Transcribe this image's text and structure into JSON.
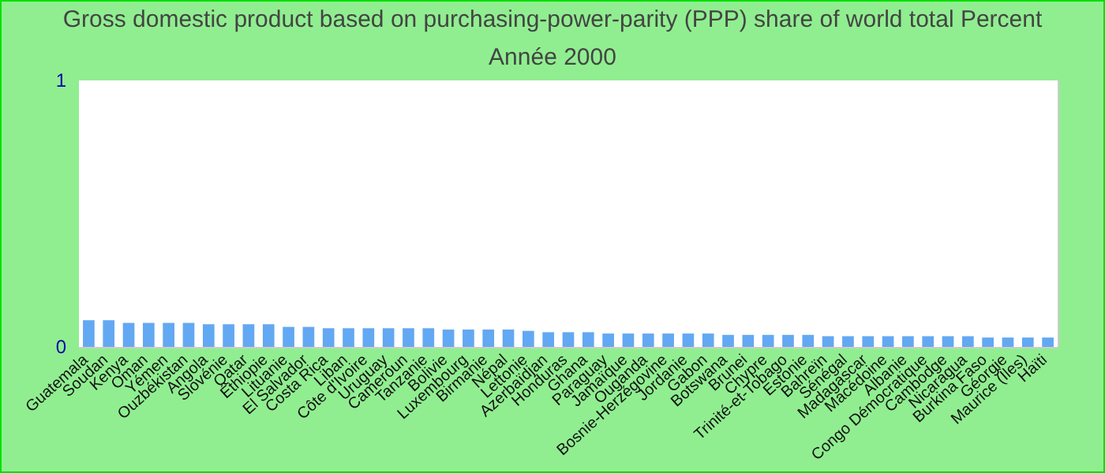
{
  "chart_data": {
    "type": "bar",
    "title": "Gross domestic product based on purchasing-power-parity (PPP) share of world total  Percent",
    "subtitle": "Année 2000",
    "categories": [
      "Guatemala",
      "Soudan",
      "Kenya",
      "Oman",
      "Yémen",
      "Ouzbékistan",
      "Angola",
      "Slovénie",
      "Qatar",
      "Éthiopie",
      "Lituanie",
      "El Salvador",
      "Costa Rica",
      "Liban",
      "Côte d'Ivoire",
      "Uruguay",
      "Cameroun",
      "Tanzanie",
      "Bolivie",
      "Luxembourg",
      "Birmanie",
      "Népal",
      "Lettonie",
      "Azerbaïdjan",
      "Honduras",
      "Ghana",
      "Paraguay",
      "Jamaïque",
      "Ouganda",
      "Bosnie-Herzégovine",
      "Jordanie",
      "Gabon",
      "Botswana",
      "Brunei",
      "Chypre",
      "Trinité-et-Tobago",
      "Estonie",
      "Bahreïn",
      "Sénégal",
      "Madagascar",
      "Macédoine",
      "Albanie",
      "Congo Démocratique",
      "Cambodge",
      "Nicaragua",
      "Burkina Faso",
      "Géorgie",
      "Maurice (Îles)",
      "Haïti"
    ],
    "values": [
      0.1,
      0.1,
      0.09,
      0.09,
      0.09,
      0.09,
      0.085,
      0.085,
      0.085,
      0.085,
      0.075,
      0.075,
      0.07,
      0.07,
      0.07,
      0.07,
      0.07,
      0.07,
      0.065,
      0.065,
      0.065,
      0.065,
      0.06,
      0.055,
      0.055,
      0.055,
      0.05,
      0.05,
      0.05,
      0.05,
      0.05,
      0.05,
      0.045,
      0.045,
      0.045,
      0.045,
      0.045,
      0.04,
      0.04,
      0.04,
      0.04,
      0.04,
      0.04,
      0.04,
      0.04,
      0.035,
      0.035,
      0.035,
      0.035
    ],
    "color": "#63a8f2",
    "ylim": [
      0,
      1
    ],
    "yticks": [
      0,
      1
    ],
    "grid": false
  }
}
